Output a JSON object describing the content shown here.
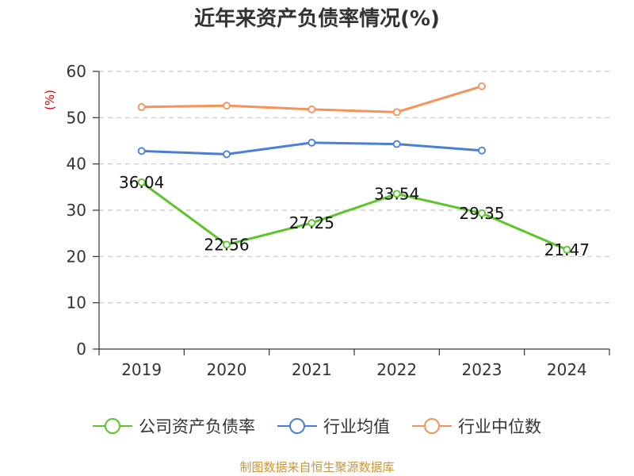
{
  "chart_data": {
    "type": "line",
    "title": "近年来资产负债率情况(%)",
    "ylabel": "(%)",
    "xlabel": "",
    "categories": [
      "2019",
      "2020",
      "2021",
      "2022",
      "2023",
      "2024"
    ],
    "ylim": [
      0,
      60
    ],
    "yticks": [
      0,
      10,
      20,
      30,
      40,
      50,
      60
    ],
    "grid": true,
    "legend_position": "bottom",
    "series": [
      {
        "name": "公司资产负债率",
        "color": "#5cc52a",
        "values": [
          36.04,
          22.56,
          27.25,
          33.54,
          29.35,
          21.47
        ],
        "data_labels": [
          "36.04",
          "22.56",
          "27.25",
          "33.54",
          "29.35",
          "21.47"
        ]
      },
      {
        "name": "行业均值",
        "color": "#4a7fd6",
        "values": [
          42.8,
          42.1,
          44.6,
          44.3,
          42.9,
          null
        ]
      },
      {
        "name": "行业中位数",
        "color": "#f5935a",
        "values": [
          52.3,
          52.6,
          51.8,
          51.2,
          56.8,
          null
        ]
      }
    ]
  },
  "source": "制图数据来自恒生聚源数据库"
}
